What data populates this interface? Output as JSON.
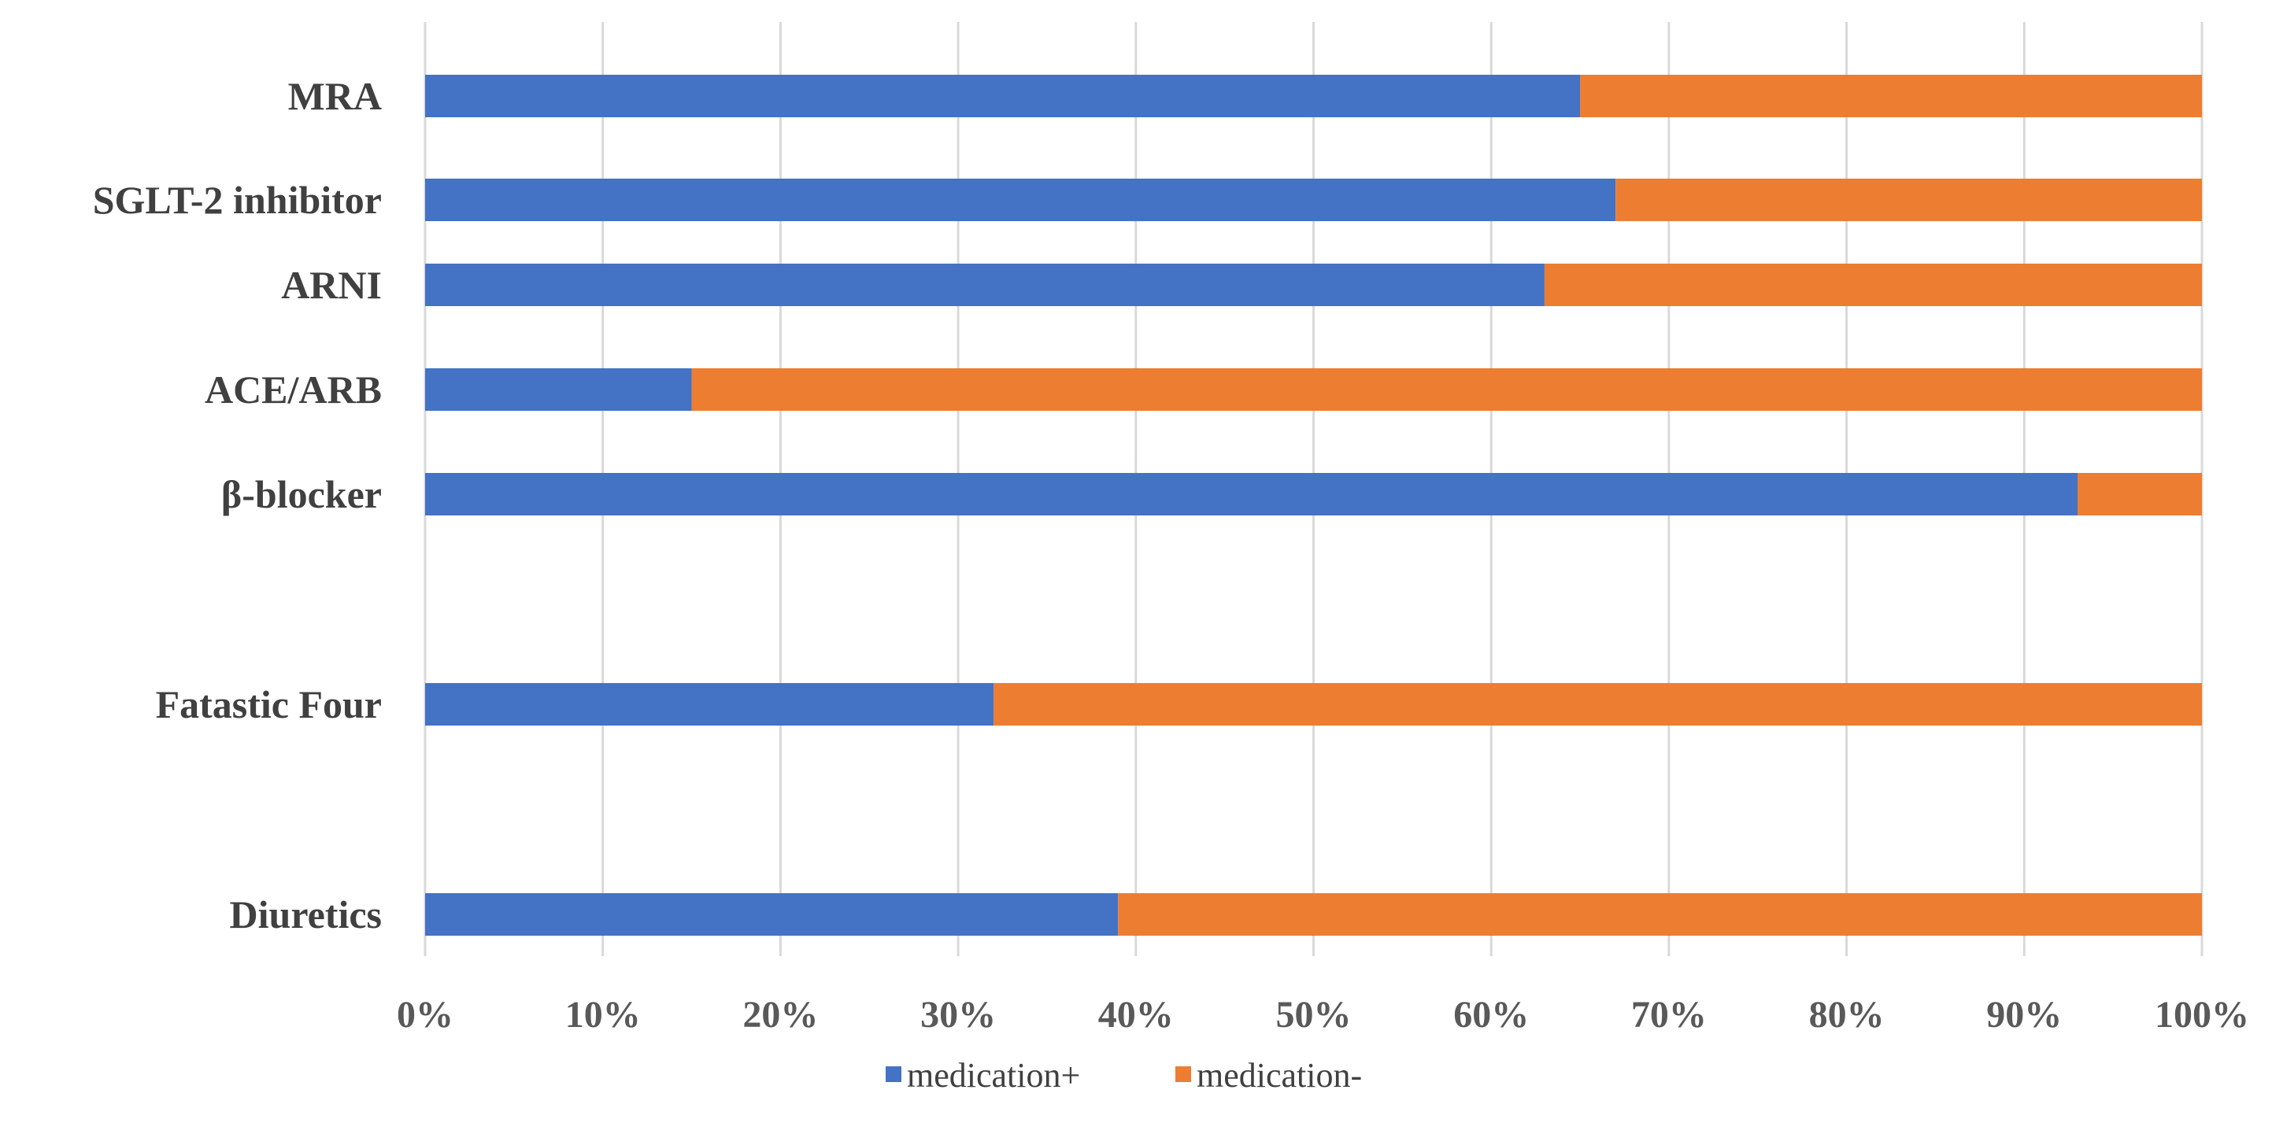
{
  "chart_data": {
    "type": "bar",
    "orientation": "horizontal",
    "stacked": "100%",
    "categories": [
      "MRA",
      "SGLT-2 inhibitor",
      "ARNI",
      "ACE/ARB",
      "β-blocker",
      "Fatastic Four",
      "Diuretics"
    ],
    "series": [
      {
        "name": "medication+",
        "color": "#4472C4",
        "values": [
          65,
          67,
          63,
          15,
          93,
          32,
          39
        ]
      },
      {
        "name": "medication-",
        "color": "#ED7D31",
        "values": [
          35,
          33,
          37,
          85,
          7,
          68,
          61
        ]
      }
    ],
    "x_ticks": [
      "0%",
      "10%",
      "20%",
      "30%",
      "40%",
      "50%",
      "60%",
      "70%",
      "80%",
      "90%",
      "100%"
    ],
    "xlim": [
      0,
      100
    ],
    "grid": "vertical",
    "legend_position": "bottom"
  }
}
